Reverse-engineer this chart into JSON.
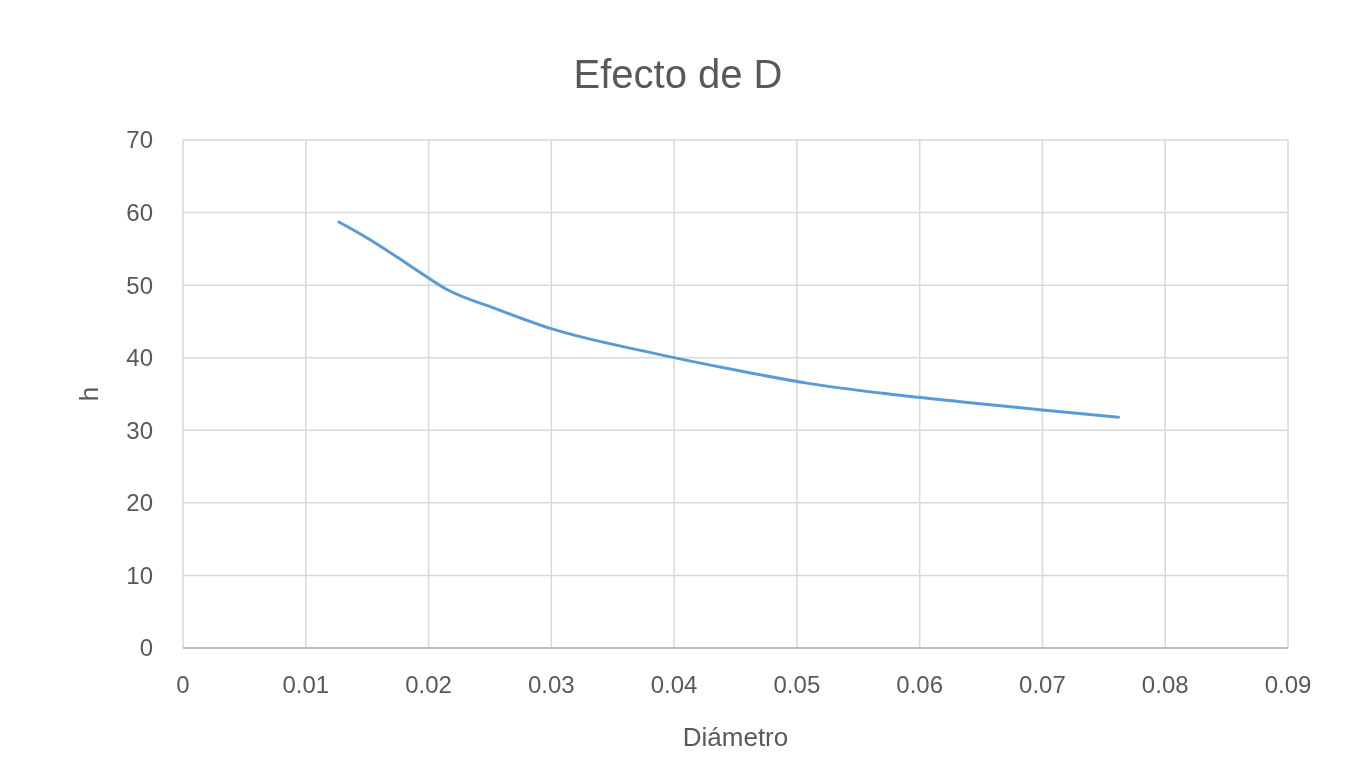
{
  "chart_data": {
    "type": "line",
    "title": "Efecto de D",
    "xlabel": "Diámetro",
    "ylabel": "h",
    "series": [
      {
        "color": "#5b9bd5",
        "x": [
          0.0127,
          0.015,
          0.0175,
          0.0191,
          0.0215,
          0.0254,
          0.03,
          0.0381,
          0.045,
          0.0508,
          0.0575,
          0.0635,
          0.07,
          0.0762
        ],
        "values": [
          58.7,
          56.5,
          53.8,
          52,
          49.4,
          46.8,
          44,
          40.7,
          38.3,
          36.5,
          35,
          33.9,
          32.8,
          31.8
        ]
      }
    ],
    "xlim": [
      0,
      0.09
    ],
    "xticks": [
      0,
      0.01,
      0.02,
      0.03,
      0.04,
      0.05,
      0.06,
      0.07,
      0.08,
      0.09
    ],
    "ylim": [
      0,
      70
    ],
    "yticks": [
      0,
      10,
      20,
      30,
      40,
      50,
      60,
      70
    ],
    "grid": true,
    "marker": "none",
    "line_style": "solid"
  }
}
